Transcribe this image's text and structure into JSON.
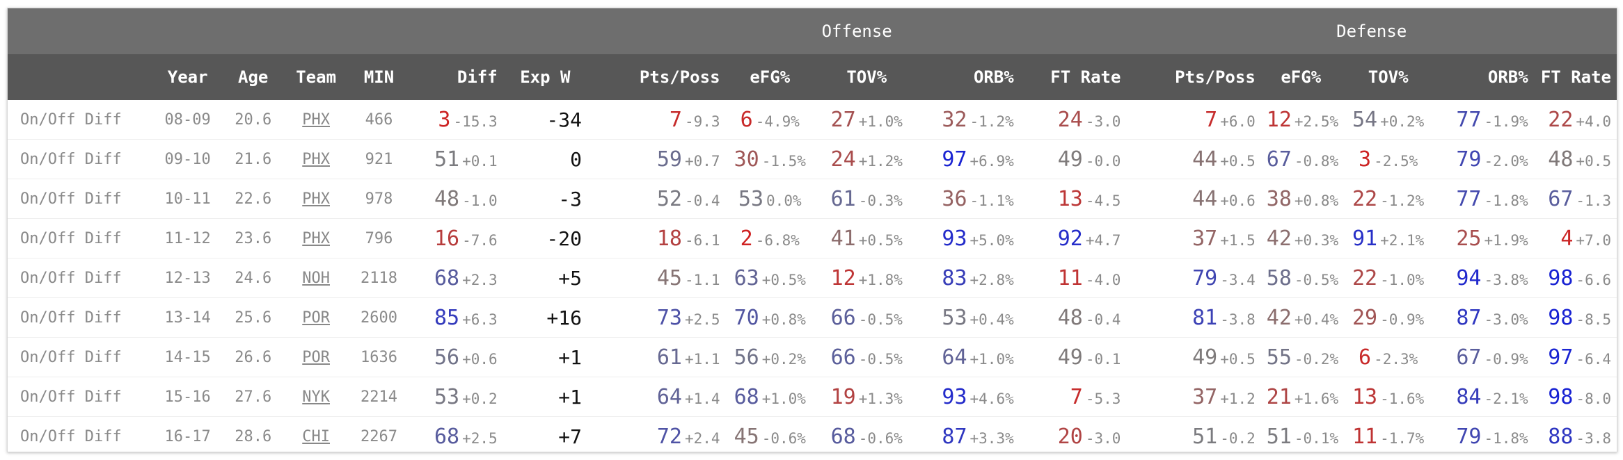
{
  "group_headers": {
    "offense": "Offense",
    "defense": "Defense"
  },
  "columns": [
    "Year",
    "Age",
    "Team",
    "MIN",
    "Diff",
    "Exp W",
    "Pts/Poss",
    "eFG%",
    "TOV%",
    "ORB%",
    "FT Rate",
    "Pts/Poss",
    "eFG%",
    "TOV%",
    "ORB%",
    "FT Rate"
  ],
  "rows": [
    {
      "label": "On/Off Diff",
      "year": "08-09",
      "age": "20.6",
      "team": "PHX",
      "min": "466",
      "exp_w": "-34",
      "stats": [
        [
          "3",
          "-15.3"
        ],
        [
          "7",
          "-9.3"
        ],
        [
          "6",
          "-4.9%"
        ],
        [
          "27",
          "+1.0%"
        ],
        [
          "32",
          "-1.2%"
        ],
        [
          "24",
          "-3.0"
        ],
        [
          "7",
          "+6.0"
        ],
        [
          "12",
          "+2.5%"
        ],
        [
          "54",
          "+0.2%"
        ],
        [
          "77",
          "-1.9%"
        ],
        [
          "22",
          "+4.0"
        ]
      ]
    },
    {
      "label": "On/Off Diff",
      "year": "09-10",
      "age": "21.6",
      "team": "PHX",
      "min": "921",
      "exp_w": "0",
      "stats": [
        [
          "51",
          "+0.1"
        ],
        [
          "59",
          "+0.7"
        ],
        [
          "30",
          "-1.5%"
        ],
        [
          "24",
          "+1.2%"
        ],
        [
          "97",
          "+6.9%"
        ],
        [
          "49",
          "-0.0"
        ],
        [
          "44",
          "+0.5"
        ],
        [
          "67",
          "-0.8%"
        ],
        [
          "3",
          "-2.5%"
        ],
        [
          "79",
          "-2.0%"
        ],
        [
          "48",
          "+0.5"
        ]
      ]
    },
    {
      "label": "On/Off Diff",
      "year": "10-11",
      "age": "22.6",
      "team": "PHX",
      "min": "978",
      "exp_w": "-3",
      "stats": [
        [
          "48",
          "-1.0"
        ],
        [
          "52",
          "-0.4"
        ],
        [
          "53",
          "0.0%"
        ],
        [
          "61",
          "-0.3%"
        ],
        [
          "36",
          "-1.1%"
        ],
        [
          "13",
          "-4.5"
        ],
        [
          "44",
          "+0.6"
        ],
        [
          "38",
          "+0.8%"
        ],
        [
          "22",
          "-1.2%"
        ],
        [
          "77",
          "-1.8%"
        ],
        [
          "67",
          "-1.3"
        ]
      ]
    },
    {
      "label": "On/Off Diff",
      "year": "11-12",
      "age": "23.6",
      "team": "PHX",
      "min": "796",
      "exp_w": "-20",
      "stats": [
        [
          "16",
          "-7.6"
        ],
        [
          "18",
          "-6.1"
        ],
        [
          "2",
          "-6.8%"
        ],
        [
          "41",
          "+0.5%"
        ],
        [
          "93",
          "+5.0%"
        ],
        [
          "92",
          "+4.7"
        ],
        [
          "37",
          "+1.5"
        ],
        [
          "42",
          "+0.3%"
        ],
        [
          "91",
          "+2.1%"
        ],
        [
          "25",
          "+1.9%"
        ],
        [
          "4",
          "+7.0"
        ]
      ]
    },
    {
      "label": "On/Off Diff",
      "year": "12-13",
      "age": "24.6",
      "team": "NOH",
      "min": "2118",
      "exp_w": "+5",
      "stats": [
        [
          "68",
          "+2.3"
        ],
        [
          "45",
          "-1.1"
        ],
        [
          "63",
          "+0.5%"
        ],
        [
          "12",
          "+1.8%"
        ],
        [
          "83",
          "+2.8%"
        ],
        [
          "11",
          "-4.0"
        ],
        [
          "79",
          "-3.4"
        ],
        [
          "58",
          "-0.5%"
        ],
        [
          "22",
          "-1.0%"
        ],
        [
          "94",
          "-3.8%"
        ],
        [
          "98",
          "-6.6"
        ]
      ]
    },
    {
      "label": "On/Off Diff",
      "year": "13-14",
      "age": "25.6",
      "team": "POR",
      "min": "2600",
      "exp_w": "+16",
      "stats": [
        [
          "85",
          "+6.3"
        ],
        [
          "73",
          "+2.5"
        ],
        [
          "70",
          "+0.8%"
        ],
        [
          "66",
          "-0.5%"
        ],
        [
          "53",
          "+0.4%"
        ],
        [
          "48",
          "-0.4"
        ],
        [
          "81",
          "-3.8"
        ],
        [
          "42",
          "+0.4%"
        ],
        [
          "29",
          "-0.9%"
        ],
        [
          "87",
          "-3.0%"
        ],
        [
          "98",
          "-8.5"
        ]
      ]
    },
    {
      "label": "On/Off Diff",
      "year": "14-15",
      "age": "26.6",
      "team": "POR",
      "min": "1636",
      "exp_w": "+1",
      "stats": [
        [
          "56",
          "+0.6"
        ],
        [
          "61",
          "+1.1"
        ],
        [
          "56",
          "+0.2%"
        ],
        [
          "66",
          "-0.5%"
        ],
        [
          "64",
          "+1.0%"
        ],
        [
          "49",
          "-0.1"
        ],
        [
          "49",
          "+0.5"
        ],
        [
          "55",
          "-0.2%"
        ],
        [
          "6",
          "-2.3%"
        ],
        [
          "67",
          "-0.9%"
        ],
        [
          "97",
          "-6.4"
        ]
      ]
    },
    {
      "label": "On/Off Diff",
      "year": "15-16",
      "age": "27.6",
      "team": "NYK",
      "min": "2214",
      "exp_w": "+1",
      "stats": [
        [
          "53",
          "+0.2"
        ],
        [
          "64",
          "+1.4"
        ],
        [
          "68",
          "+1.0%"
        ],
        [
          "19",
          "+1.3%"
        ],
        [
          "93",
          "+4.6%"
        ],
        [
          "7",
          "-5.3"
        ],
        [
          "37",
          "+1.2"
        ],
        [
          "21",
          "+1.6%"
        ],
        [
          "13",
          "-1.6%"
        ],
        [
          "84",
          "-2.1%"
        ],
        [
          "98",
          "-8.0"
        ]
      ]
    },
    {
      "label": "On/Off Diff",
      "year": "16-17",
      "age": "28.6",
      "team": "CHI",
      "min": "2267",
      "exp_w": "+7",
      "stats": [
        [
          "68",
          "+2.5"
        ],
        [
          "72",
          "+2.4"
        ],
        [
          "45",
          "-0.6%"
        ],
        [
          "68",
          "-0.6%"
        ],
        [
          "87",
          "+3.3%"
        ],
        [
          "20",
          "-3.0"
        ],
        [
          "51",
          "-0.2"
        ],
        [
          "51",
          "-0.1%"
        ],
        [
          "11",
          "-1.7%"
        ],
        [
          "79",
          "-1.8%"
        ],
        [
          "88",
          "-3.8"
        ]
      ]
    }
  ]
}
